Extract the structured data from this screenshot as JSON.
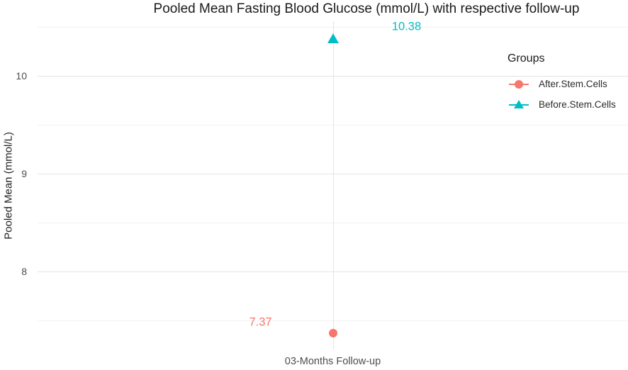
{
  "chart_data": {
    "type": "scatter",
    "title": "Pooled Mean Fasting Blood Glucose (mmol/L) with respective follow-up",
    "xlabel": "",
    "ylabel": "Pooled Mean (mmol/L)",
    "x_categories": [
      "03-Months Follow-up"
    ],
    "ylim": [
      7.2,
      10.56
    ],
    "y_major_ticks": [
      8,
      9,
      10
    ],
    "y_minor_ticks": [
      7.5,
      8.5,
      9.5,
      10.5
    ],
    "grid": true,
    "legend": {
      "title": "Groups",
      "position": "inside-top-right"
    },
    "series": [
      {
        "name": "After.Stem.Cells",
        "marker": "circle",
        "color": "#F8766D",
        "x": "03-Months Follow-up",
        "value": 7.37,
        "label": "7.37",
        "label_dx": -102,
        "label_dy": -15
      },
      {
        "name": "Before.Stem.Cells",
        "marker": "triangle",
        "color": "#00BFC4",
        "x": "03-Months Follow-up",
        "value": 10.38,
        "label": "10.38",
        "label_dx": 104,
        "label_dy": -17
      }
    ]
  }
}
